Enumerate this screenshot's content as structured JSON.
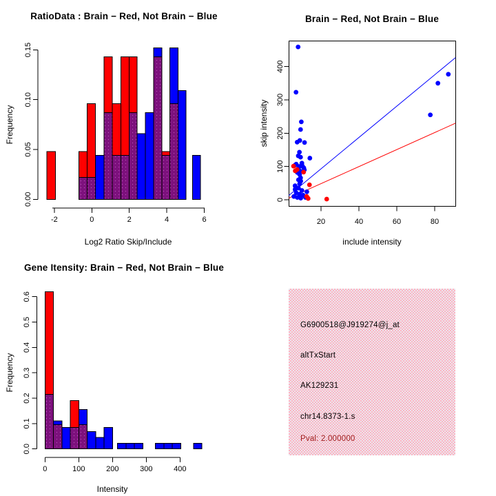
{
  "colors": {
    "red": "#FF0000",
    "blue": "#0000FF",
    "overlap_purple": "#7D117D",
    "overlap_dot": "#BE5EC0",
    "axis": "#000000",
    "pval_red": "#9E1A1A",
    "info_box_pink": "#F4C3CD"
  },
  "chart_data": [
    {
      "type": "bar",
      "subtype": "overlaid-histogram",
      "title": "RatioData : Brain − Red, Not Brain − Blue",
      "xlabel": "Log2 Ratio Skip/Include",
      "ylabel": "Frequency",
      "xlim": [
        -2.6,
        6.2
      ],
      "ylim": [
        0,
        0.152
      ],
      "x_ticks": [
        -2,
        0,
        2,
        4,
        6
      ],
      "y_ticks": [
        0,
        0.05,
        0.1,
        0.15
      ],
      "y_tick_labels": [
        "0.00",
        "0.05",
        "0.10",
        "0.15"
      ],
      "legend": "red = Brain, blue = Not Brain, purple = overlap of both histograms",
      "bars": [
        {
          "x0": -2.4,
          "x1": -1.95,
          "h": 0.048,
          "series": "red",
          "overlap": 0
        },
        {
          "x0": -0.7,
          "x1": -0.25,
          "h": 0.048,
          "series": "red",
          "overlap": 0.022
        },
        {
          "x0": -0.25,
          "x1": 0.2,
          "h": 0.096,
          "series": "red",
          "overlap": 0.022
        },
        {
          "x0": 0.2,
          "x1": 0.65,
          "h": 0.044,
          "series": "blue",
          "overlap": 0
        },
        {
          "x0": 0.65,
          "x1": 1.1,
          "h": 0.143,
          "series": "red",
          "overlap": 0.087
        },
        {
          "x0": 1.1,
          "x1": 1.55,
          "h": 0.096,
          "series": "red",
          "overlap": 0.044
        },
        {
          "x0": 1.55,
          "x1": 2.0,
          "h": 0.143,
          "series": "red",
          "overlap": 0.044
        },
        {
          "x0": 2.0,
          "x1": 2.42,
          "h": 0.143,
          "series": "red",
          "overlap": 0.087
        },
        {
          "x0": 2.42,
          "x1": 2.86,
          "h": 0.066,
          "series": "blue",
          "overlap": 0
        },
        {
          "x0": 2.86,
          "x1": 3.3,
          "h": 0.087,
          "series": "blue",
          "overlap": 0
        },
        {
          "x0": 3.3,
          "x1": 3.73,
          "h": 0.152,
          "series": "blue",
          "overlap": 0.143
        },
        {
          "x0": 3.73,
          "x1": 4.16,
          "h": 0.048,
          "series": "red",
          "overlap": 0.044
        },
        {
          "x0": 4.16,
          "x1": 4.6,
          "h": 0.152,
          "series": "blue",
          "overlap": 0.096
        },
        {
          "x0": 4.6,
          "x1": 5.03,
          "h": 0.109,
          "series": "blue",
          "overlap": 0
        },
        {
          "x0": 5.37,
          "x1": 5.8,
          "h": 0.044,
          "series": "blue",
          "overlap": 0
        }
      ]
    },
    {
      "type": "scatter",
      "title": "Brain − Red, Not Brain − Blue",
      "xlabel": "include intensity",
      "ylabel": "skip intensity",
      "xlim": [
        3,
        91
      ],
      "ylim": [
        -19,
        477
      ],
      "x_ticks": [
        20,
        40,
        60,
        80
      ],
      "y_ticks": [
        0,
        100,
        200,
        300,
        400
      ],
      "blue_points": [
        [
          7.9,
          459
        ],
        [
          6.8,
          323
        ],
        [
          9.6,
          234
        ],
        [
          9.2,
          211
        ],
        [
          8.8,
          178
        ],
        [
          7.4,
          173
        ],
        [
          11.3,
          172
        ],
        [
          8.6,
          143
        ],
        [
          8.0,
          132
        ],
        [
          9.2,
          128
        ],
        [
          14.1,
          125
        ],
        [
          9.9,
          110
        ],
        [
          6.9,
          107
        ],
        [
          6.3,
          104
        ],
        [
          8.5,
          100
        ],
        [
          10.9,
          96
        ],
        [
          8.1,
          93
        ],
        [
          11.2,
          90
        ],
        [
          9.0,
          86
        ],
        [
          7.5,
          82
        ],
        [
          8.7,
          76
        ],
        [
          9.2,
          66
        ],
        [
          8.1,
          60
        ],
        [
          9.3,
          56
        ],
        [
          8.7,
          48
        ],
        [
          6.3,
          42
        ],
        [
          8.1,
          35
        ],
        [
          6.3,
          31
        ],
        [
          9.9,
          28
        ],
        [
          12.5,
          24
        ],
        [
          6.9,
          21
        ],
        [
          8.7,
          17
        ],
        [
          10.5,
          14
        ],
        [
          5.7,
          10
        ],
        [
          11.8,
          7
        ],
        [
          7.5,
          7
        ],
        [
          9.3,
          5
        ],
        [
          10.2,
          101
        ],
        [
          77.7,
          255
        ],
        [
          81.7,
          350
        ],
        [
          87.2,
          377
        ]
      ],
      "red_points": [
        [
          5.5,
          101
        ],
        [
          7.4,
          91
        ],
        [
          6.4,
          87
        ],
        [
          10.8,
          83
        ],
        [
          13.9,
          45
        ],
        [
          12.4,
          10
        ],
        [
          13.2,
          4
        ],
        [
          23,
          2
        ]
      ],
      "blue_line": {
        "x0": 3,
        "y0": 13,
        "x1": 91,
        "y1": 427
      },
      "red_line": {
        "x0": 3,
        "y0": 5,
        "x1": 91,
        "y1": 230
      }
    },
    {
      "type": "bar",
      "subtype": "overlaid-histogram",
      "title": "Gene Itensity: Brain − Red, Not Brain − Blue",
      "xlabel": "Intensity",
      "ylabel": "Frequency",
      "xlim": [
        -25,
        480
      ],
      "ylim": [
        0,
        0.62
      ],
      "x_ticks": [
        0,
        100,
        200,
        300,
        400
      ],
      "y_ticks": [
        0,
        0.1,
        0.2,
        0.3,
        0.4,
        0.5,
        0.6
      ],
      "y_tick_labels": [
        "0.0",
        "0.1",
        "0.2",
        "0.3",
        "0.4",
        "0.5",
        "0.6"
      ],
      "legend": "red = Brain, blue = Not Brain, purple = overlap of both histograms",
      "bars": [
        {
          "x0": 0,
          "x1": 25,
          "h": 0.62,
          "series": "red",
          "overlap": 0.215
        },
        {
          "x0": 25,
          "x1": 50,
          "h": 0.11,
          "series": "blue",
          "overlap": 0.095
        },
        {
          "x0": 50,
          "x1": 75,
          "h": 0.085,
          "series": "blue",
          "overlap": 0
        },
        {
          "x0": 75,
          "x1": 100,
          "h": 0.19,
          "series": "red",
          "overlap": 0.085
        },
        {
          "x0": 100,
          "x1": 125,
          "h": 0.155,
          "series": "blue",
          "overlap": 0.095
        },
        {
          "x0": 125,
          "x1": 150,
          "h": 0.068,
          "series": "blue",
          "overlap": 0
        },
        {
          "x0": 150,
          "x1": 175,
          "h": 0.045,
          "series": "blue",
          "overlap": 0
        },
        {
          "x0": 175,
          "x1": 200,
          "h": 0.085,
          "series": "blue",
          "overlap": 0
        },
        {
          "x0": 215,
          "x1": 240,
          "h": 0.022,
          "series": "blue",
          "overlap": 0
        },
        {
          "x0": 240,
          "x1": 265,
          "h": 0.022,
          "series": "blue",
          "overlap": 0
        },
        {
          "x0": 265,
          "x1": 290,
          "h": 0.022,
          "series": "blue",
          "overlap": 0
        },
        {
          "x0": 327,
          "x1": 352,
          "h": 0.022,
          "series": "blue",
          "overlap": 0
        },
        {
          "x0": 352,
          "x1": 377,
          "h": 0.022,
          "series": "blue",
          "overlap": 0
        },
        {
          "x0": 377,
          "x1": 402,
          "h": 0.022,
          "series": "blue",
          "overlap": 0
        },
        {
          "x0": 440,
          "x1": 465,
          "h": 0.022,
          "series": "blue",
          "overlap": 0
        }
      ]
    },
    {
      "type": "table",
      "subtype": "text-panel",
      "lines": [
        "G6900518@J919274@j_at",
        "altTxStart",
        "AK129231",
        "chr14.8373-1.s"
      ],
      "pval_line": "Pval: 2.000000"
    }
  ]
}
